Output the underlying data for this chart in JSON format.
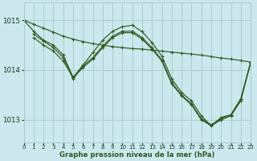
{
  "background_color": "#cce8ee",
  "grid_color": "#aacccc",
  "line_color": "#2d5a1e",
  "xlabel": "Graphe pression niveau de la mer (hPa)",
  "xlim": [
    0,
    23
  ],
  "ylim": [
    1012.55,
    1015.35
  ],
  "yticks": [
    1013,
    1014,
    1015
  ],
  "xticks": [
    0,
    1,
    2,
    3,
    4,
    5,
    6,
    7,
    8,
    9,
    10,
    11,
    12,
    13,
    14,
    15,
    16,
    17,
    18,
    19,
    20,
    21,
    22,
    23
  ],
  "lines": [
    {
      "x": [
        0,
        1,
        2,
        3,
        4,
        5,
        6,
        7,
        8,
        9,
        10,
        11,
        12,
        13,
        14,
        15,
        16,
        17,
        18,
        19,
        20,
        21,
        22,
        23
      ],
      "y": [
        1015.0,
        1014.92,
        1014.84,
        1014.76,
        1014.68,
        1014.62,
        1014.57,
        1014.53,
        1014.5,
        1014.47,
        1014.45,
        1014.43,
        1014.42,
        1014.4,
        1014.38,
        1014.36,
        1014.34,
        1014.32,
        1014.3,
        1014.27,
        1014.24,
        1014.22,
        1014.19,
        1014.16
      ]
    },
    {
      "x": [
        0,
        1,
        2,
        3,
        4,
        5,
        6,
        7,
        8,
        9,
        10,
        11,
        12,
        13,
        14,
        15,
        16,
        17,
        18,
        19,
        20,
        21,
        22,
        23
      ],
      "y": [
        1015.0,
        1014.78,
        1014.6,
        1014.5,
        1014.3,
        1013.85,
        1014.1,
        1014.35,
        1014.6,
        1014.78,
        1014.87,
        1014.9,
        1014.77,
        1014.55,
        1014.28,
        1013.82,
        1013.55,
        1013.38,
        1013.08,
        1012.88,
        1013.05,
        1013.1,
        1013.42,
        1014.15
      ]
    },
    {
      "x": [
        1,
        2,
        3,
        4,
        5,
        6,
        7,
        8,
        9,
        10,
        11,
        12,
        13,
        14,
        15,
        16,
        17,
        18,
        19,
        20,
        21,
        22,
        23
      ],
      "y": [
        1014.65,
        1014.5,
        1014.38,
        1014.18,
        1013.85,
        1014.05,
        1014.22,
        1014.45,
        1014.65,
        1014.75,
        1014.75,
        1014.62,
        1014.42,
        1014.18,
        1013.72,
        1013.48,
        1013.3,
        1013.0,
        1012.88,
        1013.0,
        1013.08,
        1013.38,
        1014.15
      ]
    },
    {
      "x": [
        1,
        2,
        3,
        4,
        5,
        6,
        7,
        8,
        9,
        10,
        11,
        12,
        13,
        14,
        15,
        16,
        17,
        18,
        19,
        20,
        21,
        22,
        23
      ],
      "y": [
        1014.72,
        1014.58,
        1014.45,
        1014.25,
        1013.82,
        1014.08,
        1014.25,
        1014.48,
        1014.68,
        1014.78,
        1014.78,
        1014.65,
        1014.45,
        1014.2,
        1013.75,
        1013.5,
        1013.32,
        1013.02,
        1012.9,
        1013.02,
        1013.1,
        1013.42,
        1014.15
      ]
    }
  ]
}
